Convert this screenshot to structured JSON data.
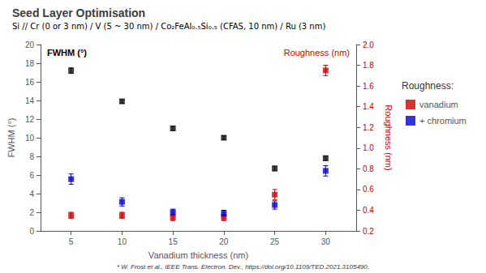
{
  "chart_data": {
    "type": "scatter",
    "title": "Seed Layer Optimisation",
    "subtitle": "Si // Cr (0 or 3 nm) / V (5 ~ 30 nm) / Co₂FeAl₀.₅Si₀.₅ (CFAS, 10 nm) / Ru (3 nm)",
    "x_label": "Vanadium thickness (nm)",
    "y_label": "FWHM (°)",
    "y2_label": "Roughness (nm)",
    "x": [
      5,
      10,
      15,
      20,
      25,
      30
    ],
    "series": [
      {
        "color": "#111111",
        "marker": "square",
        "values": [
          17.2,
          13.9,
          11.0,
          10.0,
          6.7,
          7.8
        ],
        "yerr": [
          0.3,
          0.2,
          0.25,
          0.2,
          0.25,
          0.25
        ]
      },
      {
        "name": "vanadium",
        "axis": "y2",
        "color": "#cc0000",
        "marker": "square",
        "values": [
          0.35,
          0.35,
          0.33,
          0.33,
          0.55,
          1.75
        ],
        "yerr": [
          0.03,
          0.03,
          0.03,
          0.03,
          0.05,
          0.05
        ]
      },
      {
        "name": "+ chromium",
        "axis": "y2",
        "color": "#0000cc",
        "marker": "square",
        "values": [
          0.7,
          0.48,
          0.38,
          0.37,
          0.45,
          0.78
        ],
        "yerr": [
          0.05,
          0.04,
          0.03,
          0.03,
          0.04,
          0.05
        ]
      }
    ],
    "xlim": [
      2,
      33
    ],
    "xticks": [
      5,
      10,
      15,
      20,
      25,
      30
    ],
    "ylim": [
      0,
      20
    ],
    "yticks": [
      0,
      2,
      4,
      6,
      8,
      10,
      12,
      14,
      16,
      18,
      20
    ],
    "y2lim": [
      0.2,
      2.0
    ],
    "y2ticks": [
      0.2,
      0.4,
      0.6,
      0.8,
      {
        "value": 1.0,
        "label": "1.0"
      },
      1.2,
      1.4,
      1.6,
      1.8,
      {
        "value": 2.0,
        "label": "2.0"
      }
    ],
    "grid": false,
    "legend": "upper right",
    "legend_title": "Roughness:",
    "annotations": [
      "FWHM (°)",
      "Roughness (nm)",
      "* W. Frost et al., IEEE Trans. Electron. Dev., https://doi.org/10.1109/TED.2021.3105490."
    ]
  }
}
